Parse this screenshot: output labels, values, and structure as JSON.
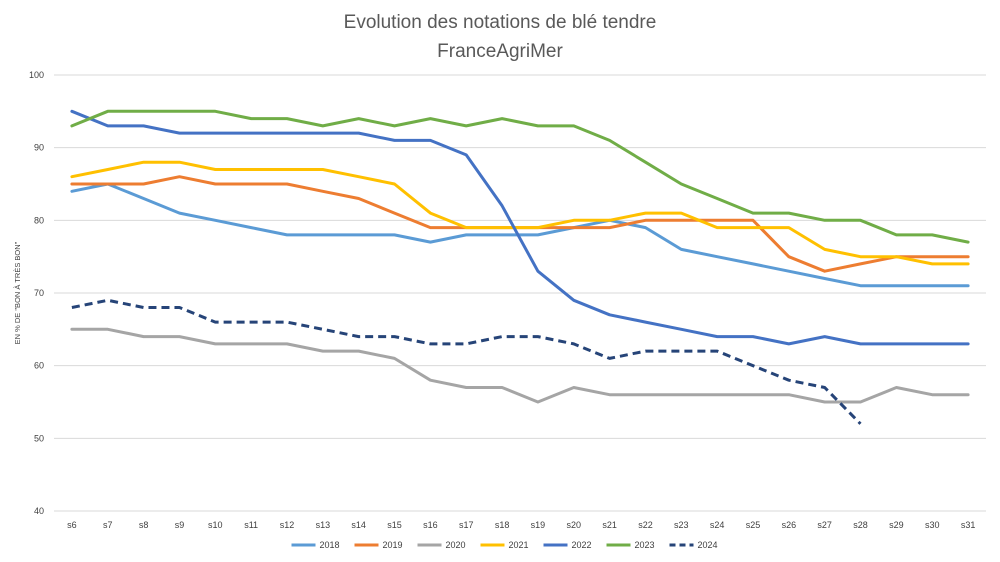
{
  "chart_data": {
    "type": "line",
    "title": "Evolution des notations de blé tendre",
    "subtitle": "FranceAgriMer",
    "xlabel": "",
    "ylabel": "EN % DE \"BON À TRÈS BON\"",
    "ylim": [
      40,
      100
    ],
    "yticks": [
      40,
      50,
      60,
      70,
      80,
      90,
      100
    ],
    "grid": true,
    "legend": "bottom",
    "categories": [
      "s6",
      "s7",
      "s8",
      "s9",
      "s10",
      "s11",
      "s12",
      "s13",
      "s14",
      "s15",
      "s16",
      "s17",
      "s18",
      "s19",
      "s20",
      "s21",
      "s22",
      "s23",
      "s24",
      "s25",
      "s26",
      "s27",
      "s28",
      "s29",
      "s30",
      "s31"
    ],
    "series": [
      {
        "name": "2018",
        "color": "#5b9bd5",
        "dashed": false,
        "values": [
          84,
          85,
          83,
          81,
          80,
          79,
          78,
          78,
          78,
          78,
          77,
          78,
          78,
          78,
          79,
          80,
          79,
          76,
          75,
          74,
          73,
          72,
          71,
          71,
          71,
          71
        ]
      },
      {
        "name": "2019",
        "color": "#ed7d31",
        "dashed": false,
        "values": [
          85,
          85,
          85,
          86,
          85,
          85,
          85,
          84,
          83,
          81,
          79,
          79,
          79,
          79,
          79,
          79,
          80,
          80,
          80,
          80,
          75,
          73,
          74,
          75,
          75,
          75
        ]
      },
      {
        "name": "2020",
        "color": "#a5a5a5",
        "dashed": false,
        "values": [
          65,
          65,
          64,
          64,
          63,
          63,
          63,
          62,
          62,
          61,
          58,
          57,
          57,
          55,
          57,
          56,
          56,
          56,
          56,
          56,
          56,
          55,
          55,
          57,
          56,
          56
        ]
      },
      {
        "name": "2021",
        "color": "#ffc000",
        "dashed": false,
        "values": [
          86,
          87,
          88,
          88,
          87,
          87,
          87,
          87,
          86,
          85,
          81,
          79,
          79,
          79,
          80,
          80,
          81,
          81,
          79,
          79,
          79,
          76,
          75,
          75,
          74,
          74
        ]
      },
      {
        "name": "2022",
        "color": "#4472c4",
        "dashed": false,
        "values": [
          95,
          93,
          93,
          92,
          92,
          92,
          92,
          92,
          92,
          91,
          91,
          89,
          82,
          73,
          69,
          67,
          66,
          65,
          64,
          64,
          63,
          64,
          63,
          63,
          63,
          63
        ]
      },
      {
        "name": "2023",
        "color": "#70ad47",
        "dashed": false,
        "values": [
          93,
          95,
          95,
          95,
          95,
          94,
          94,
          93,
          94,
          93,
          94,
          93,
          94,
          93,
          93,
          91,
          88,
          85,
          83,
          81,
          81,
          80,
          80,
          78,
          78,
          77
        ]
      },
      {
        "name": "2024",
        "color": "#264478",
        "dashed": true,
        "values": [
          68,
          69,
          68,
          68,
          66,
          66,
          66,
          65,
          64,
          64,
          63,
          63,
          64,
          64,
          63,
          61,
          62,
          62,
          62,
          60,
          58,
          57,
          52,
          null,
          null,
          null
        ]
      }
    ]
  }
}
